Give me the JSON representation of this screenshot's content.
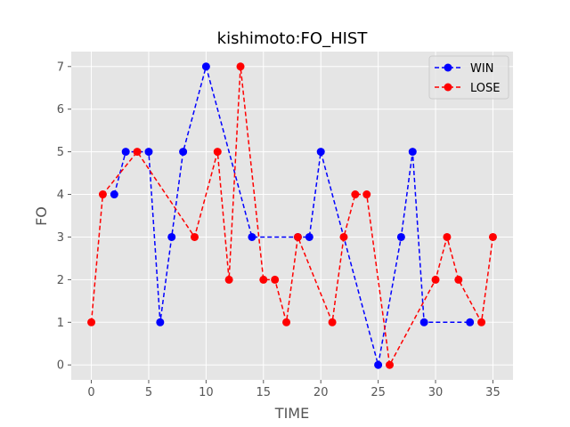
{
  "chart_data": {
    "type": "line",
    "title": "kishimoto:FO_HIST",
    "xlabel": "TIME",
    "ylabel": "FO",
    "xlim": [
      -1.75,
      36.75
    ],
    "ylim": [
      -0.35,
      7.35
    ],
    "x_ticks": [
      0,
      5,
      10,
      15,
      20,
      25,
      30,
      35
    ],
    "y_ticks": [
      0,
      1,
      2,
      3,
      4,
      5,
      6,
      7
    ],
    "grid": true,
    "legend_position": "top-right",
    "series": [
      {
        "name": "WIN",
        "color": "#0000ff",
        "linestyle": "dashed",
        "marker": "circle",
        "x": [
          2,
          3,
          5,
          6,
          7,
          8,
          10,
          14,
          18,
          19,
          20,
          25,
          27,
          28,
          29,
          33
        ],
        "y": [
          4,
          5,
          5,
          1,
          3,
          5,
          7,
          3,
          3,
          3,
          5,
          0,
          3,
          5,
          1,
          1
        ]
      },
      {
        "name": "LOSE",
        "color": "#ff0000",
        "linestyle": "dashed",
        "marker": "circle",
        "x": [
          0,
          1,
          4,
          9,
          11,
          12,
          13,
          15,
          16,
          17,
          18,
          21,
          22,
          23,
          24,
          26,
          30,
          31,
          32,
          34,
          35
        ],
        "y": [
          1,
          4,
          5,
          3,
          5,
          2,
          7,
          2,
          2,
          1,
          3,
          1,
          3,
          4,
          4,
          0,
          2,
          3,
          2,
          1,
          3
        ]
      }
    ]
  }
}
